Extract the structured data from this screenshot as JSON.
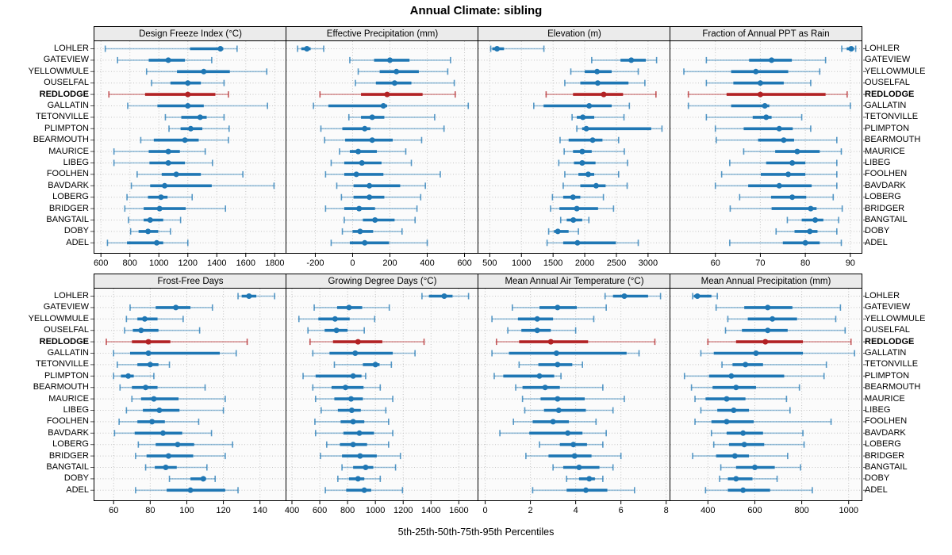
{
  "figure": {
    "title": "Annual Climate: sibling",
    "caption": "5th-25th-50th-75th-95th Percentiles"
  },
  "colors": {
    "series": "#1f77b4",
    "highlight": "#b22224",
    "strip_bg": "#ebebeb",
    "panel_bg": "#fbfbfb",
    "grid": "#c4c4c4",
    "border": "#000000"
  },
  "chart_data": {
    "type": "dotplot",
    "subtype": "percentile-intervals",
    "percentiles": [
      5,
      25,
      50,
      75,
      95
    ],
    "stations": [
      "LOHLER",
      "GATEVIEW",
      "YELLOWMULE",
      "OUSELFAL",
      "REDLODGE",
      "GALLATIN",
      "TETONVILLE",
      "PLIMPTON",
      "BEARMOUTH",
      "MAURICE",
      "LIBEG",
      "FOOLHEN",
      "BAVDARK",
      "LOBERG",
      "BRIDGER",
      "BANGTAIL",
      "DOBY",
      "ADEL"
    ],
    "highlight_station": "REDLODGE",
    "panels": [
      {
        "title": "Design Freeze Index (°C)",
        "xlim": [
          555,
          1875
        ],
        "ticks": [
          600,
          800,
          1000,
          1200,
          1400,
          1600,
          1800
        ],
        "values": [
          [
            630,
            1215,
            1425,
            1445,
            1540
          ],
          [
            715,
            930,
            1065,
            1180,
            1365
          ],
          [
            915,
            1125,
            1310,
            1490,
            1745
          ],
          [
            950,
            1080,
            1200,
            1290,
            1450
          ],
          [
            655,
            905,
            1200,
            1390,
            1480
          ],
          [
            785,
            990,
            1200,
            1310,
            1750
          ],
          [
            1045,
            1155,
            1285,
            1330,
            1450
          ],
          [
            1070,
            1150,
            1220,
            1300,
            1485
          ],
          [
            875,
            965,
            1180,
            1275,
            1480
          ],
          [
            690,
            930,
            1065,
            1145,
            1320
          ],
          [
            690,
            935,
            1065,
            1180,
            1370
          ],
          [
            850,
            1020,
            1120,
            1290,
            1580
          ],
          [
            810,
            940,
            1040,
            1365,
            1795
          ],
          [
            780,
            925,
            1015,
            1060,
            1230
          ],
          [
            765,
            895,
            1005,
            1185,
            1460
          ],
          [
            790,
            895,
            940,
            1030,
            1150
          ],
          [
            805,
            860,
            925,
            995,
            1080
          ],
          [
            645,
            780,
            985,
            1030,
            1200
          ]
        ]
      },
      {
        "title": "Effective Precipitation (mm)",
        "xlim": [
          -355,
          670
        ],
        "ticks": [
          -200,
          0,
          200,
          400,
          600
        ],
        "values": [
          [
            -295,
            -275,
            -245,
            -225,
            -155
          ],
          [
            -15,
            115,
            200,
            305,
            525
          ],
          [
            30,
            145,
            235,
            355,
            510
          ],
          [
            15,
            125,
            225,
            315,
            545
          ],
          [
            -175,
            45,
            185,
            375,
            550
          ],
          [
            -210,
            -130,
            165,
            185,
            620
          ],
          [
            -20,
            45,
            105,
            170,
            440
          ],
          [
            -170,
            -55,
            65,
            95,
            490
          ],
          [
            -150,
            -40,
            105,
            215,
            370
          ],
          [
            -70,
            -15,
            30,
            130,
            285
          ],
          [
            -115,
            -45,
            50,
            155,
            315
          ],
          [
            -145,
            -45,
            20,
            165,
            470
          ],
          [
            -85,
            5,
            90,
            255,
            390
          ],
          [
            -60,
            5,
            90,
            170,
            365
          ],
          [
            -145,
            -45,
            35,
            120,
            345
          ],
          [
            -45,
            55,
            120,
            225,
            335
          ],
          [
            -55,
            0,
            40,
            110,
            265
          ],
          [
            -115,
            -15,
            65,
            195,
            400
          ]
        ]
      },
      {
        "title": "Elevation (m)",
        "xlim": [
          320,
          3340
        ],
        "ticks": [
          500,
          1000,
          1500,
          2000,
          2500,
          3000
        ],
        "values": [
          [
            515,
            540,
            615,
            725,
            1355
          ],
          [
            2110,
            2565,
            2735,
            2965,
            3135
          ],
          [
            1780,
            2000,
            2195,
            2425,
            2845
          ],
          [
            1685,
            1930,
            2205,
            2690,
            2950
          ],
          [
            1390,
            1815,
            2300,
            2605,
            3125
          ],
          [
            1195,
            1350,
            2070,
            2425,
            2705
          ],
          [
            1800,
            1875,
            1970,
            2150,
            2620
          ],
          [
            1875,
            1960,
            2025,
            3050,
            3220
          ],
          [
            1610,
            1745,
            2125,
            2280,
            2535
          ],
          [
            1675,
            1815,
            1960,
            2110,
            2625
          ],
          [
            1590,
            1830,
            1960,
            2170,
            2675
          ],
          [
            1685,
            1900,
            2055,
            2150,
            2535
          ],
          [
            1660,
            1930,
            2180,
            2330,
            2670
          ],
          [
            1490,
            1660,
            1815,
            1930,
            2295
          ],
          [
            1460,
            1600,
            1875,
            2210,
            2455
          ],
          [
            1620,
            1715,
            1820,
            1960,
            2065
          ],
          [
            1430,
            1515,
            1575,
            1745,
            1900
          ],
          [
            1405,
            1660,
            1885,
            2490,
            2845
          ]
        ]
      },
      {
        "title": "Fraction of Annual PPT as Rain",
        "xlim": [
          50,
          92.5
        ],
        "ticks": [
          60,
          70,
          80,
          90
        ],
        "values": [
          [
            88.1,
            89.2,
            90.2,
            90.8,
            91.2
          ],
          [
            58,
            67.5,
            72.5,
            77,
            84.5
          ],
          [
            53,
            63.5,
            69,
            76.2,
            83.2
          ],
          [
            58,
            64,
            70,
            75.2,
            81.2
          ],
          [
            54,
            62.5,
            70,
            84.5,
            89.3
          ],
          [
            54,
            63.5,
            71,
            72,
            90
          ],
          [
            58,
            68.3,
            71.3,
            72.5,
            79.2
          ],
          [
            60,
            66.3,
            74.2,
            77.2,
            81.2
          ],
          [
            60.2,
            69.5,
            75.2,
            77.5,
            87
          ],
          [
            66.3,
            73.3,
            78.2,
            83.2,
            88
          ],
          [
            63.2,
            71.3,
            77.1,
            80,
            87
          ],
          [
            61.4,
            70.1,
            76.2,
            80,
            87
          ],
          [
            60,
            67.3,
            74.2,
            81.4,
            87
          ],
          [
            65.4,
            72.4,
            77.1,
            80.2,
            86.2
          ],
          [
            63.3,
            72.5,
            81.2,
            82.5,
            88.2
          ],
          [
            76,
            79.2,
            82.2,
            84,
            87.4
          ],
          [
            73.5,
            77.6,
            81,
            82.7,
            87
          ],
          [
            63.2,
            75,
            80,
            83.2,
            88
          ]
        ]
      },
      {
        "title": "Frost-Free Days",
        "xlim": [
          49.5,
          154
        ],
        "ticks": [
          60,
          80,
          100,
          120,
          140
        ],
        "values": [
          [
            128,
            130,
            134,
            138,
            148
          ],
          [
            69,
            83,
            94,
            102,
            114
          ],
          [
            67,
            73,
            77,
            84,
            98
          ],
          [
            66,
            70.5,
            75,
            84.5,
            107
          ],
          [
            56,
            70,
            79,
            91,
            133
          ],
          [
            60,
            69,
            79,
            118,
            127
          ],
          [
            62,
            73,
            80,
            84.5,
            90.5
          ],
          [
            60,
            64,
            68,
            71,
            82
          ],
          [
            63.5,
            70,
            77.5,
            84,
            110
          ],
          [
            70,
            75,
            82,
            95.5,
            121
          ],
          [
            67,
            76,
            85,
            96,
            120
          ],
          [
            63,
            73,
            81,
            88,
            106.5
          ],
          [
            60.5,
            71.5,
            87,
            97.5,
            113.5
          ],
          [
            73.5,
            83,
            95,
            104,
            125
          ],
          [
            72,
            78,
            90,
            103.5,
            121
          ],
          [
            77.5,
            82.5,
            88.5,
            94.5,
            111
          ],
          [
            90.5,
            102,
            109,
            110.5,
            115.5
          ],
          [
            72,
            89,
            102,
            121,
            128
          ]
        ]
      },
      {
        "title": "Growing Degree Days (°C)",
        "xlim": [
          360,
          1735
        ],
        "ticks": [
          400,
          600,
          800,
          1000,
          1200,
          1400,
          1600
        ],
        "values": [
          [
            1335,
            1385,
            1495,
            1555,
            1670
          ],
          [
            560,
            725,
            810,
            905,
            1100
          ],
          [
            450,
            590,
            710,
            815,
            995
          ],
          [
            515,
            635,
            720,
            800,
            920
          ],
          [
            530,
            695,
            875,
            1050,
            1350
          ],
          [
            550,
            670,
            855,
            1125,
            1285
          ],
          [
            705,
            910,
            1000,
            1030,
            1115
          ],
          [
            480,
            570,
            840,
            900,
            930
          ],
          [
            550,
            685,
            785,
            915,
            1035
          ],
          [
            570,
            705,
            825,
            910,
            1125
          ],
          [
            610,
            730,
            830,
            895,
            1075
          ],
          [
            565,
            750,
            840,
            920,
            1095
          ],
          [
            570,
            770,
            885,
            990,
            1125
          ],
          [
            650,
            745,
            840,
            940,
            1095
          ],
          [
            605,
            760,
            890,
            1010,
            1180
          ],
          [
            760,
            840,
            930,
            985,
            1145
          ],
          [
            730,
            810,
            875,
            920,
            1035
          ],
          [
            640,
            790,
            920,
            970,
            1195
          ]
        ]
      },
      {
        "title": "Mean Annual Air Temperature (°C)",
        "xlim": [
          -0.3,
          8.15
        ],
        "ticks": [
          0,
          2,
          4,
          6,
          8
        ],
        "values": [
          [
            5.3,
            5.65,
            6.15,
            7.2,
            7.75
          ],
          [
            1.2,
            2.4,
            3.2,
            4.05,
            5.35
          ],
          [
            0.3,
            1.45,
            2.3,
            3.0,
            4.8
          ],
          [
            1.0,
            1.6,
            2.3,
            2.9,
            4.0
          ],
          [
            0.5,
            1.5,
            2.9,
            4.55,
            7.5
          ],
          [
            0.3,
            1.05,
            3.15,
            6.25,
            6.8
          ],
          [
            1.5,
            2.35,
            3.2,
            3.85,
            4.3
          ],
          [
            0.4,
            0.8,
            2.4,
            3.05,
            3.35
          ],
          [
            1.35,
            1.65,
            2.65,
            3.3,
            5.2
          ],
          [
            1.65,
            2.45,
            3.2,
            4.4,
            6.15
          ],
          [
            1.75,
            2.6,
            3.25,
            4.45,
            5.65
          ],
          [
            1.25,
            2.1,
            3.0,
            3.7,
            4.9
          ],
          [
            0.65,
            1.95,
            3.65,
            4.3,
            5.35
          ],
          [
            2.4,
            3.3,
            3.9,
            4.5,
            5.2
          ],
          [
            1.8,
            2.8,
            3.95,
            4.7,
            6.0
          ],
          [
            3.0,
            3.45,
            4.15,
            5.05,
            5.65
          ],
          [
            3.6,
            4.15,
            4.6,
            4.85,
            5.2
          ],
          [
            2.1,
            3.6,
            4.45,
            5.4,
            6.6
          ]
        ]
      },
      {
        "title": "Mean Annual Precipitation (mm)",
        "xlim": [
          240,
          1055
        ],
        "ticks": [
          400,
          600,
          800,
          1000
        ],
        "values": [
          [
            335,
            340,
            355,
            415,
            440
          ],
          [
            435,
            555,
            655,
            760,
            965
          ],
          [
            485,
            570,
            675,
            780,
            945
          ],
          [
            475,
            545,
            655,
            740,
            985
          ],
          [
            400,
            520,
            645,
            805,
            1010
          ],
          [
            370,
            425,
            605,
            805,
            1025
          ],
          [
            460,
            505,
            560,
            635,
            905
          ],
          [
            300,
            405,
            500,
            725,
            895
          ],
          [
            330,
            420,
            520,
            605,
            790
          ],
          [
            345,
            390,
            480,
            560,
            735
          ],
          [
            370,
            440,
            510,
            575,
            750
          ],
          [
            345,
            415,
            480,
            595,
            925
          ],
          [
            415,
            480,
            550,
            635,
            805
          ],
          [
            425,
            490,
            555,
            640,
            810
          ],
          [
            335,
            435,
            515,
            575,
            740
          ],
          [
            455,
            520,
            600,
            685,
            795
          ],
          [
            450,
            485,
            520,
            590,
            695
          ],
          [
            390,
            485,
            550,
            665,
            845
          ]
        ]
      }
    ]
  }
}
